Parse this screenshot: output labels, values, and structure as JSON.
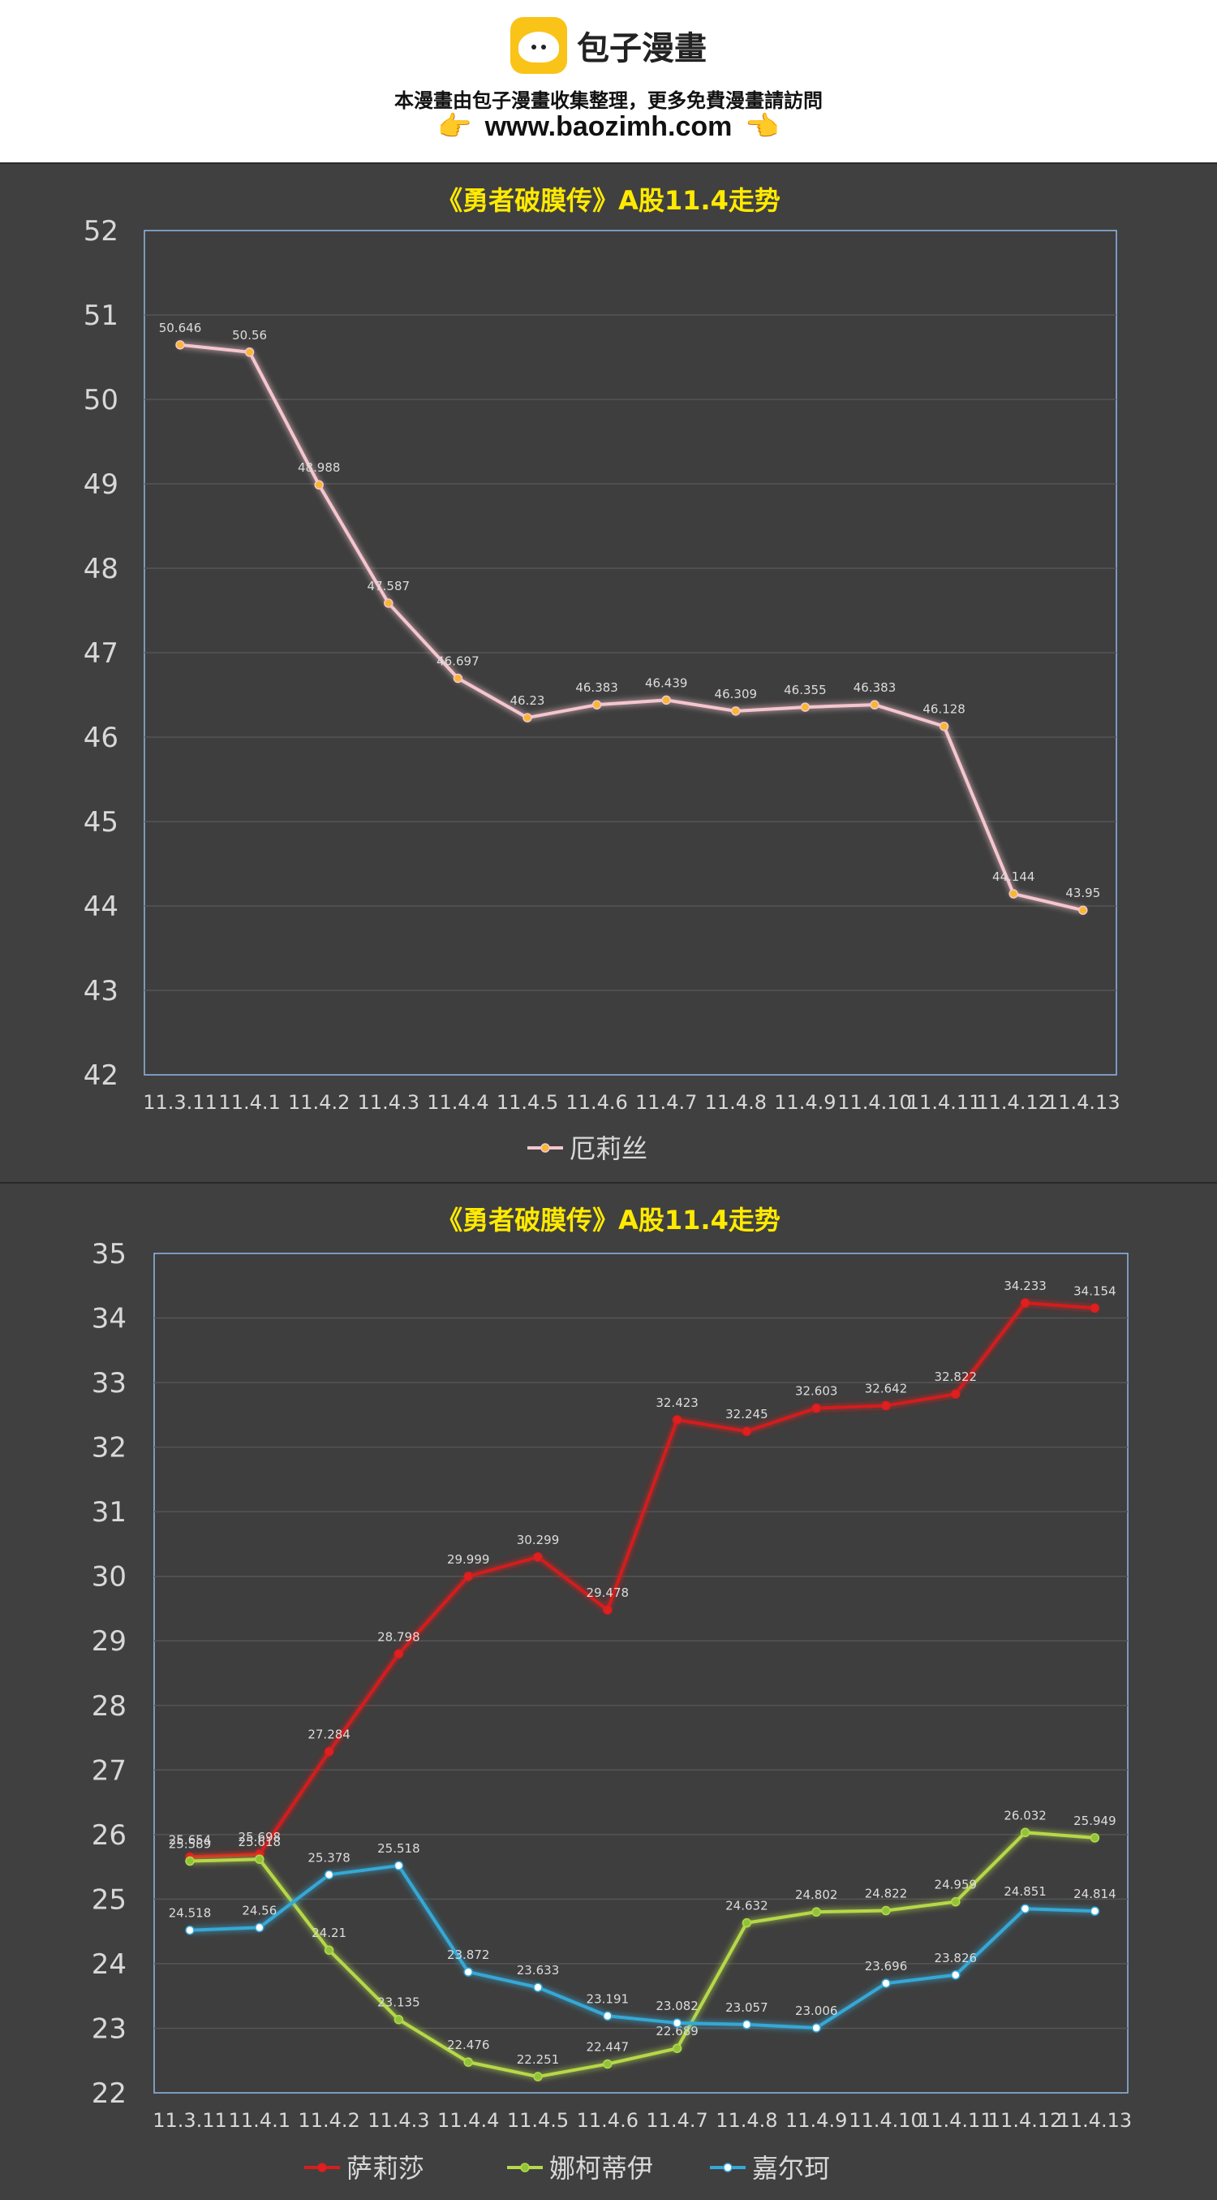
{
  "header": {
    "brand": "包子漫畫",
    "notice": "本漫畫由包子漫畫收集整理，更多免費漫畫請訪問",
    "url": "www.baozimh.com",
    "hand_left": "👉",
    "hand_right": "👈"
  },
  "colors": {
    "panel_bg": "#404040",
    "title": "#ffea00",
    "axis_text": "#d8d8d8",
    "plot_border": "#8fb8e8",
    "grid": "#555555",
    "series_eris": "#f5c6cf",
    "series_salisa": "#d41f1f",
    "series_natii": "#b6d84a",
    "series_jiaer": "#35a8d6"
  },
  "chart_data": [
    {
      "type": "line",
      "title": "《勇者破膜传》A股11.4走势",
      "categories": [
        "11.3.11",
        "11.4.1",
        "11.4.2",
        "11.4.3",
        "11.4.4",
        "11.4.5",
        "11.4.6",
        "11.4.7",
        "11.4.8",
        "11.4.9",
        "11.4.10",
        "11.4.11",
        "11.4.12",
        "11.4.13"
      ],
      "ylim": [
        42,
        52
      ],
      "yticks": [
        42,
        43,
        44,
        45,
        46,
        47,
        48,
        49,
        50,
        51,
        52
      ],
      "grid": true,
      "legend_position": "bottom",
      "series": [
        {
          "name": "厄莉丝",
          "color": "#f5c6cf",
          "marker_color": "#f7b731",
          "values": [
            50.646,
            50.56,
            48.988,
            47.587,
            46.697,
            46.23,
            46.383,
            46.439,
            46.309,
            46.355,
            46.383,
            46.128,
            44.144,
            43.95
          ],
          "labels": [
            "50.646",
            "50.56",
            "48.988",
            "47.587",
            "46.697",
            "46.23",
            "46.383",
            "46.439",
            "46.309",
            "46.355",
            "46.383",
            "46.128",
            "44.144",
            "43.95"
          ]
        }
      ]
    },
    {
      "type": "line",
      "title": "《勇者破膜传》A股11.4走势",
      "categories": [
        "11.3.11",
        "11.4.1",
        "11.4.2",
        "11.4.3",
        "11.4.4",
        "11.4.5",
        "11.4.6",
        "11.4.7",
        "11.4.8",
        "11.4.9",
        "11.4.10",
        "11.4.11",
        "11.4.12",
        "11.4.13"
      ],
      "ylim": [
        22,
        35
      ],
      "yticks": [
        22,
        23,
        24,
        25,
        26,
        27,
        28,
        29,
        30,
        31,
        32,
        33,
        34,
        35
      ],
      "grid": true,
      "legend_position": "bottom",
      "series": [
        {
          "name": "萨莉莎",
          "color": "#d41f1f",
          "marker_color": "#e02020",
          "values": [
            25.654,
            25.698,
            27.284,
            28.798,
            29.999,
            30.299,
            29.478,
            32.423,
            32.245,
            32.603,
            32.642,
            32.822,
            34.233,
            34.154
          ],
          "labels": [
            "25.654",
            "25.698",
            "27.284",
            "28.798",
            "29.999",
            "30.299",
            "29.478",
            "32.423",
            "32.245",
            "32.603",
            "32.642",
            "32.822",
            "34.233",
            "34.154"
          ]
        },
        {
          "name": "娜柯蒂伊",
          "color": "#b6d84a",
          "marker_color": "#8fc43a",
          "values": [
            25.589,
            25.618,
            24.21,
            23.135,
            22.476,
            22.251,
            22.447,
            22.689,
            24.632,
            24.802,
            24.822,
            24.959,
            26.032,
            25.949
          ],
          "labels": [
            "25.589",
            "25.618",
            "24.21",
            "23.135",
            "22.476",
            "22.251",
            "22.447",
            "22.689",
            "24.632",
            "24.802",
            "24.822",
            "24.959",
            "26.032",
            "25.949"
          ]
        },
        {
          "name": "嘉尔珂",
          "color": "#35a8d6",
          "marker_color": "#ffffff",
          "values": [
            24.518,
            24.56,
            25.378,
            25.518,
            23.872,
            23.633,
            23.191,
            23.082,
            23.057,
            23.006,
            23.696,
            23.826,
            24.851,
            24.814
          ],
          "labels": [
            "24.518",
            "24.56",
            "25.378",
            "25.518",
            "23.872",
            "23.633",
            "23.191",
            "23.082",
            "23.057",
            "23.006",
            "23.696",
            "23.826",
            "24.851",
            "24.814"
          ]
        }
      ]
    }
  ]
}
